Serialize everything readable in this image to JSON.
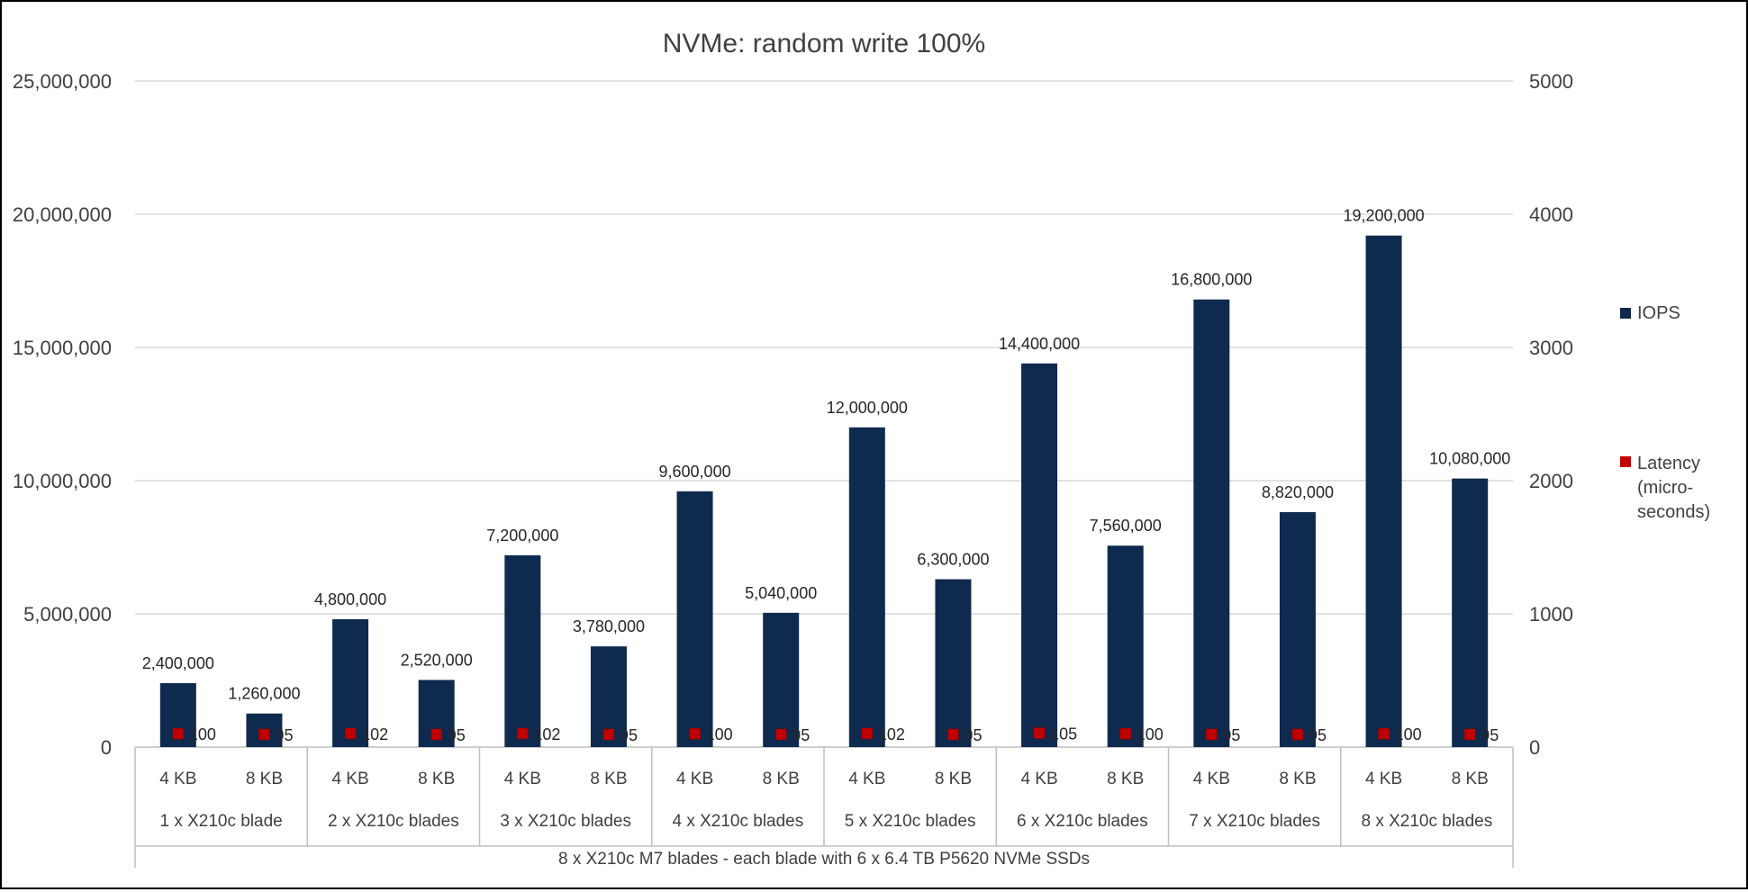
{
  "chart_data": {
    "type": "bar",
    "title": "NVMe: random write 100%",
    "left_axis": {
      "min": 0,
      "max": 25000000,
      "ticks": [
        "0",
        "5,000,000",
        "10,000,000",
        "15,000,000",
        "20,000,000",
        "25,000,000"
      ]
    },
    "right_axis": {
      "min": 0,
      "max": 5000,
      "ticks": [
        "0",
        "1000",
        "2000",
        "3000",
        "4000",
        "5000"
      ]
    },
    "grid": true,
    "legend_placement": "right",
    "categories": [
      "4 KB",
      "8 KB",
      "4 KB",
      "8 KB",
      "4 KB",
      "8 KB",
      "4 KB",
      "8 KB",
      "4 KB",
      "8 KB",
      "4 KB",
      "8 KB",
      "4 KB",
      "8 KB",
      "4 KB",
      "8 KB"
    ],
    "groups": [
      "1 x X210c blade",
      "2 x X210c blades",
      "3 x X210c blades",
      "4 x X210c blades",
      "5 x X210c blades",
      "6 x X210c blades",
      "7 x X210c blades",
      "8 x X210c blades"
    ],
    "outer_group": "8 x X210c M7 blades - each blade with 6 x 6.4 TB P5620 NVMe SSDs",
    "series": [
      {
        "name": "IOPS",
        "axis": "left",
        "kind": "bar",
        "color": "#0f2a4f",
        "values": [
          2400000,
          1260000,
          4800000,
          2520000,
          7200000,
          3780000,
          9600000,
          5040000,
          12000000,
          6300000,
          14400000,
          7560000,
          16800000,
          8820000,
          19200000,
          10080000
        ],
        "labels": [
          "2,400,000",
          "1,260,000",
          "4,800,000",
          "2,520,000",
          "7,200,000",
          "3,780,000",
          "9,600,000",
          "5,040,000",
          "12,000,000",
          "6,300,000",
          "14,400,000",
          "7,560,000",
          "16,800,000",
          "8,820,000",
          "19,200,000",
          "10,080,000"
        ]
      },
      {
        "name": "Latency (micro-seconds)",
        "legend_lines": [
          "Latency",
          "(micro-",
          "seconds)"
        ],
        "axis": "right",
        "kind": "marker",
        "color": "#c00000",
        "values": [
          100,
          95,
          102,
          95,
          102,
          95,
          100,
          95,
          102,
          95,
          105,
          100,
          95,
          95,
          100,
          95
        ],
        "labels": [
          "100",
          "95",
          "102",
          "95",
          "102",
          "95",
          "100",
          "95",
          "102",
          "95",
          "105",
          "100",
          "95",
          "95",
          "100",
          "95"
        ]
      }
    ]
  }
}
